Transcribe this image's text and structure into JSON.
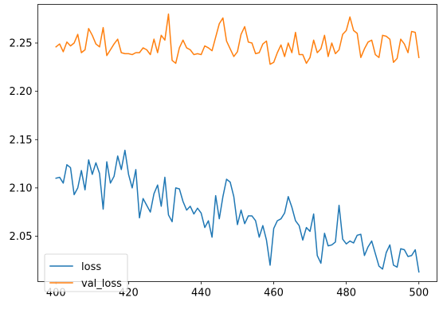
{
  "chart_data": {
    "type": "line",
    "title": "",
    "xlabel": "",
    "ylabel": "",
    "xlim": [
      395,
      505
    ],
    "ylim": [
      2.003,
      2.29
    ],
    "xticks": [
      400,
      420,
      440,
      460,
      480,
      500
    ],
    "yticks": [
      2.05,
      2.1,
      2.15,
      2.2,
      2.25
    ],
    "grid": false,
    "legend_position": "lower-left",
    "series": [
      {
        "name": "loss",
        "color": "#1f77b4",
        "x": [
          400,
          401,
          402,
          403,
          404,
          405,
          406,
          407,
          408,
          409,
          410,
          411,
          412,
          413,
          414,
          415,
          416,
          417,
          418,
          419,
          420,
          421,
          422,
          423,
          424,
          425,
          426,
          427,
          428,
          429,
          430,
          431,
          432,
          433,
          434,
          435,
          436,
          437,
          438,
          439,
          440,
          441,
          442,
          443,
          444,
          445,
          446,
          447,
          448,
          449,
          450,
          451,
          452,
          453,
          454,
          455,
          456,
          457,
          458,
          459,
          460,
          461,
          462,
          463,
          464,
          465,
          466,
          467,
          468,
          469,
          470,
          471,
          472,
          473,
          474,
          475,
          476,
          477,
          478,
          479,
          480,
          481,
          482,
          483,
          484,
          485,
          486,
          487,
          488,
          489,
          490,
          491,
          492,
          493,
          494,
          495,
          496,
          497,
          498,
          499,
          500
        ],
        "y": [
          2.11,
          2.111,
          2.105,
          2.124,
          2.121,
          2.093,
          2.1,
          2.118,
          2.098,
          2.129,
          2.114,
          2.126,
          2.115,
          2.078,
          2.127,
          2.105,
          2.112,
          2.133,
          2.119,
          2.139,
          2.114,
          2.1,
          2.119,
          2.069,
          2.089,
          2.082,
          2.075,
          2.094,
          2.103,
          2.081,
          2.111,
          2.072,
          2.065,
          2.1,
          2.099,
          2.086,
          2.077,
          2.081,
          2.073,
          2.079,
          2.074,
          2.059,
          2.066,
          2.049,
          2.092,
          2.068,
          2.091,
          2.109,
          2.106,
          2.091,
          2.062,
          2.077,
          2.063,
          2.071,
          2.071,
          2.066,
          2.049,
          2.061,
          2.046,
          2.02,
          2.058,
          2.066,
          2.068,
          2.074,
          2.091,
          2.08,
          2.066,
          2.061,
          2.046,
          2.059,
          2.055,
          2.073,
          2.03,
          2.022,
          2.053,
          2.04,
          2.041,
          2.044,
          2.082,
          2.047,
          2.042,
          2.045,
          2.043,
          2.051,
          2.052,
          2.03,
          2.039,
          2.045,
          2.032,
          2.019,
          2.016,
          2.033,
          2.041,
          2.02,
          2.018,
          2.037,
          2.036,
          2.029,
          2.03,
          2.036,
          2.013
        ]
      },
      {
        "name": "val_loss",
        "color": "#ff7f0e",
        "x": [
          400,
          401,
          402,
          403,
          404,
          405,
          406,
          407,
          408,
          409,
          410,
          411,
          412,
          413,
          414,
          415,
          416,
          417,
          418,
          419,
          420,
          421,
          422,
          423,
          424,
          425,
          426,
          427,
          428,
          429,
          430,
          431,
          432,
          433,
          434,
          435,
          436,
          437,
          438,
          439,
          440,
          441,
          442,
          443,
          444,
          445,
          446,
          447,
          448,
          449,
          450,
          451,
          452,
          453,
          454,
          455,
          456,
          457,
          458,
          459,
          460,
          461,
          462,
          463,
          464,
          465,
          466,
          467,
          468,
          469,
          470,
          471,
          472,
          473,
          474,
          475,
          476,
          477,
          478,
          479,
          480,
          481,
          482,
          483,
          484,
          485,
          486,
          487,
          488,
          489,
          490,
          491,
          492,
          493,
          494,
          495,
          496,
          497,
          498,
          499,
          500
        ],
        "y": [
          2.246,
          2.249,
          2.241,
          2.251,
          2.247,
          2.25,
          2.259,
          2.24,
          2.243,
          2.265,
          2.258,
          2.249,
          2.246,
          2.266,
          2.237,
          2.243,
          2.249,
          2.254,
          2.24,
          2.239,
          2.239,
          2.238,
          2.24,
          2.24,
          2.245,
          2.243,
          2.238,
          2.254,
          2.24,
          2.258,
          2.253,
          2.28,
          2.232,
          2.229,
          2.245,
          2.253,
          2.245,
          2.243,
          2.238,
          2.239,
          2.238,
          2.247,
          2.245,
          2.242,
          2.256,
          2.27,
          2.276,
          2.252,
          2.244,
          2.236,
          2.241,
          2.259,
          2.267,
          2.251,
          2.25,
          2.239,
          2.24,
          2.249,
          2.252,
          2.228,
          2.23,
          2.24,
          2.248,
          2.236,
          2.25,
          2.24,
          2.261,
          2.238,
          2.238,
          2.229,
          2.235,
          2.253,
          2.24,
          2.244,
          2.258,
          2.236,
          2.25,
          2.239,
          2.243,
          2.259,
          2.263,
          2.277,
          2.263,
          2.26,
          2.235,
          2.244,
          2.251,
          2.253,
          2.238,
          2.235,
          2.258,
          2.257,
          2.254,
          2.23,
          2.234,
          2.254,
          2.249,
          2.24,
          2.262,
          2.261,
          2.235
        ]
      }
    ]
  }
}
